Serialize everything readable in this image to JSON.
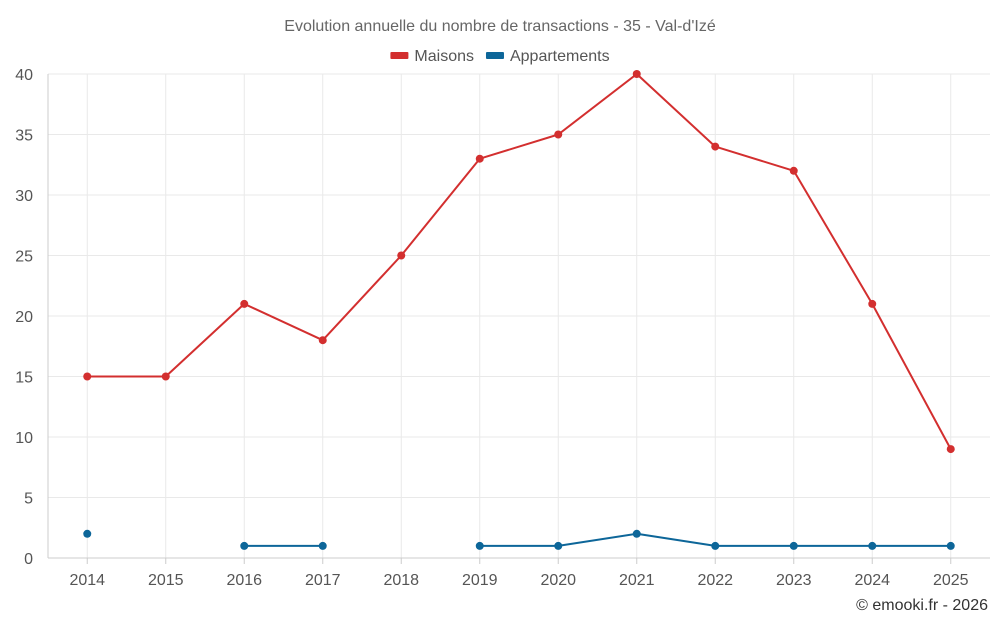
{
  "chart_data": {
    "type": "line",
    "title": "Evolution annuelle du nombre de transactions - 35 - Val-d'Izé",
    "categories": [
      "2014",
      "2015",
      "2016",
      "2017",
      "2018",
      "2019",
      "2020",
      "2021",
      "2022",
      "2023",
      "2024",
      "2025"
    ],
    "series": [
      {
        "name": "Maisons",
        "color": "#d32f2f",
        "values": [
          15,
          15,
          21,
          18,
          25,
          33,
          35,
          40,
          34,
          32,
          21,
          9
        ]
      },
      {
        "name": "Appartements",
        "color": "#0d6699",
        "values": [
          2,
          null,
          1,
          1,
          null,
          1,
          1,
          2,
          1,
          1,
          1,
          1
        ]
      }
    ],
    "ylim": [
      0,
      40
    ],
    "yticks": [
      0,
      5,
      10,
      15,
      20,
      25,
      30,
      35,
      40
    ],
    "xlabel": "",
    "ylabel": "",
    "grid": true,
    "legend_position": "top-center"
  },
  "credit": "© emooki.fr - 2026"
}
